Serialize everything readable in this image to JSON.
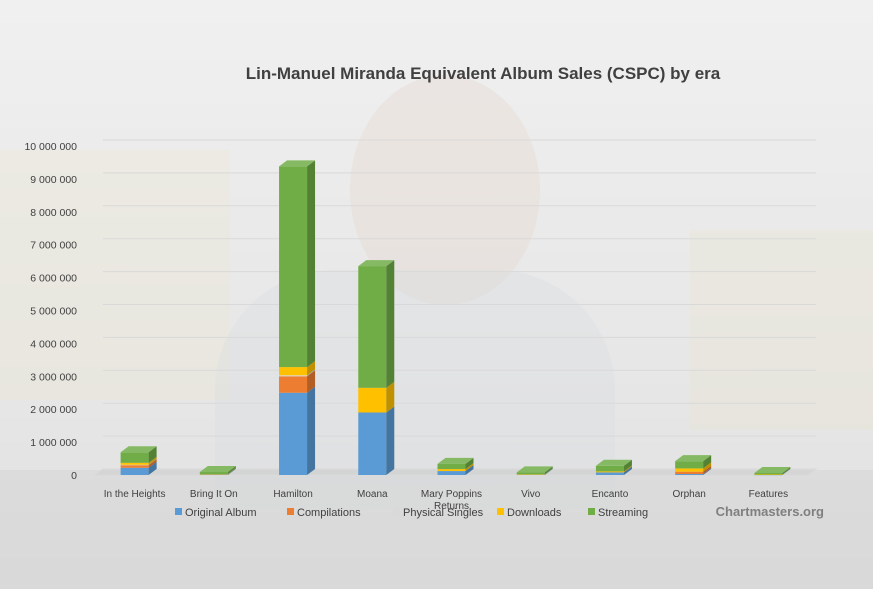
{
  "chart_data": {
    "type": "bar",
    "stacked": true,
    "three_d": true,
    "title": "Lin-Manuel Miranda Equivalent Album Sales (CSPC) by era",
    "categories": [
      "In the Heights",
      "Bring It On",
      "Hamilton",
      "Moana",
      "Mary Poppins Returns",
      "Vivo",
      "Encanto",
      "Orphan",
      "Features"
    ],
    "series": [
      {
        "name": "Original Album",
        "color": "#5b9bd5",
        "values": [
          220000,
          20000,
          2500000,
          1900000,
          120000,
          15000,
          80000,
          30000,
          10000
        ]
      },
      {
        "name": "Compilations",
        "color": "#ed7d31",
        "values": [
          80000,
          0,
          500000,
          0,
          0,
          0,
          0,
          70000,
          0
        ]
      },
      {
        "name": "Physical Singles",
        "color": "#d9d9d9",
        "values": [
          10000,
          0,
          30000,
          0,
          0,
          0,
          0,
          0,
          0
        ]
      },
      {
        "name": "Downloads",
        "color": "#ffc000",
        "values": [
          60000,
          10000,
          250000,
          750000,
          60000,
          5000,
          30000,
          100000,
          5000
        ]
      },
      {
        "name": "Streaming",
        "color": "#70ad47",
        "values": [
          320000,
          60000,
          6100000,
          3700000,
          160000,
          60000,
          170000,
          220000,
          45000
        ]
      }
    ],
    "ylim": [
      0,
      10000000
    ],
    "y_ticks": [
      "0",
      "1 000 000",
      "2 000 000",
      "3 000 000",
      "4 000 000",
      "5 000 000",
      "6 000 000",
      "7 000 000",
      "8 000 000",
      "9 000 000",
      "10 000 000"
    ],
    "grid": true,
    "legend_position": "bottom"
  },
  "watermark": "Chartmasters.org"
}
